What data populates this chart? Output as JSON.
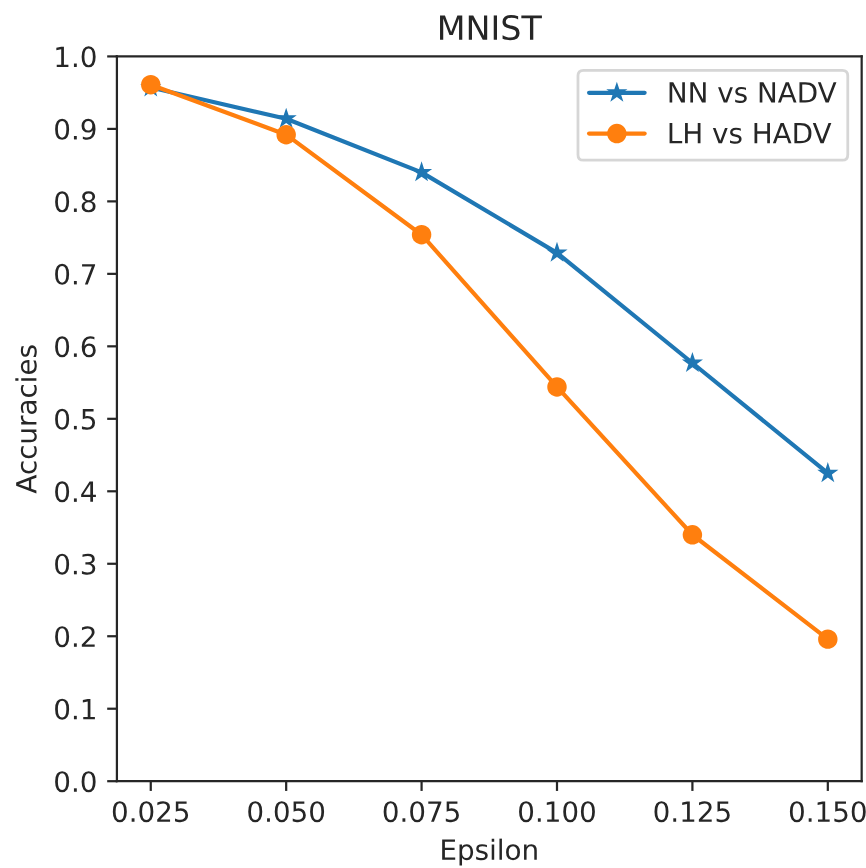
{
  "chart_data": {
    "type": "line",
    "title": "MNIST",
    "xlabel": "Epsilon",
    "ylabel": "Accuracies",
    "x": [
      0.025,
      0.05,
      0.075,
      0.1,
      0.125,
      0.15
    ],
    "series": [
      {
        "name": "NN vs NADV",
        "color": "#1f77b4",
        "marker": "star",
        "values": [
          0.957,
          0.914,
          0.84,
          0.729,
          0.577,
          0.425
        ]
      },
      {
        "name": "LH vs HADV",
        "color": "#ff7f0e",
        "marker": "circle",
        "values": [
          0.961,
          0.892,
          0.754,
          0.544,
          0.34,
          0.196
        ]
      }
    ],
    "xlim": [
      0.01875,
      0.15625
    ],
    "xticks": [
      0.025,
      {
        "value": 0.05,
        "label": "0.050"
      },
      0.075,
      {
        "value": 0.1,
        "label": "0.100"
      },
      0.125,
      {
        "value": 0.15,
        "label": "0.150"
      }
    ],
    "ylim": [
      0.0,
      1.0
    ],
    "yticks": [
      {
        "value": 0,
        "label": "0.0"
      },
      0.1,
      0.2,
      0.3,
      0.4,
      0.5,
      0.6,
      0.7,
      0.8,
      0.9,
      {
        "value": 1,
        "label": "1.0"
      }
    ],
    "legend": "top right",
    "grid": false,
    "line_style": "solid"
  }
}
